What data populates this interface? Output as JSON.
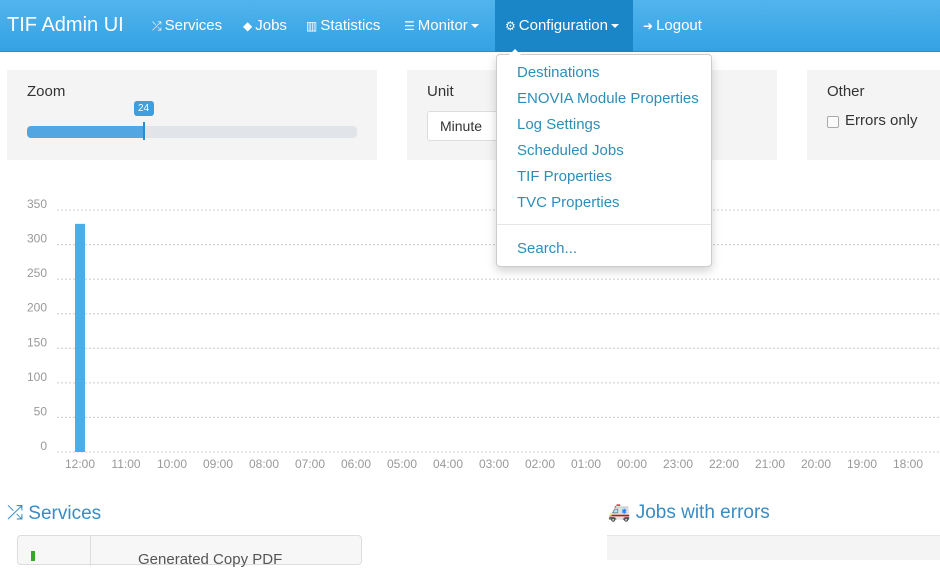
{
  "nav": {
    "brand": "TIF Admin UI",
    "items": [
      {
        "label": "Services",
        "icon": "shuffle-icon"
      },
      {
        "label": "Jobs",
        "icon": "tag-icon"
      },
      {
        "label": "Statistics",
        "icon": "bar-chart-icon"
      },
      {
        "label": "Monitor",
        "icon": "list-icon",
        "dropdown": true
      },
      {
        "label": "Configuration",
        "icon": "cogs-icon",
        "dropdown": true,
        "active": true
      },
      {
        "label": "Logout",
        "icon": "logout-icon"
      }
    ]
  },
  "config_menu": {
    "items": [
      "Destinations",
      "ENOVIA Module Properties",
      "Log Settings",
      "Scheduled Jobs",
      "TIF Properties",
      "TVC Properties"
    ],
    "search": "Search..."
  },
  "filters": {
    "zoom_label": "Zoom",
    "zoom_value": "24",
    "zoom_fraction": 0.35,
    "unit_label": "Unit",
    "unit_value": "Minute",
    "other_label": "Other",
    "errors_only_label": "Errors only",
    "errors_only_checked": false
  },
  "chart_data": {
    "type": "bar",
    "categories": [
      "12:00",
      "11:00",
      "10:00",
      "09:00",
      "08:00",
      "07:00",
      "06:00",
      "05:00",
      "04:00",
      "03:00",
      "02:00",
      "01:00",
      "00:00",
      "23:00",
      "22:00",
      "21:00",
      "20:00",
      "19:00",
      "18:00"
    ],
    "values": [
      330,
      0,
      0,
      0,
      0,
      0,
      0,
      0,
      0,
      0,
      0,
      0,
      0,
      0,
      0,
      0,
      0,
      0,
      0
    ],
    "yticks": [
      0,
      50,
      100,
      150,
      200,
      250,
      300,
      350
    ],
    "ylim": [
      0,
      350
    ],
    "grid": true,
    "bar_color": "#4aaee8"
  },
  "sections": {
    "services_title": "Services",
    "services_row_text": "Generated Copy PDF",
    "jobs_errors_title": "Jobs with errors"
  },
  "colors": {
    "navbar": "#3aa8e8",
    "active_nav": "#1a86c8",
    "link": "#2e8eb8"
  }
}
